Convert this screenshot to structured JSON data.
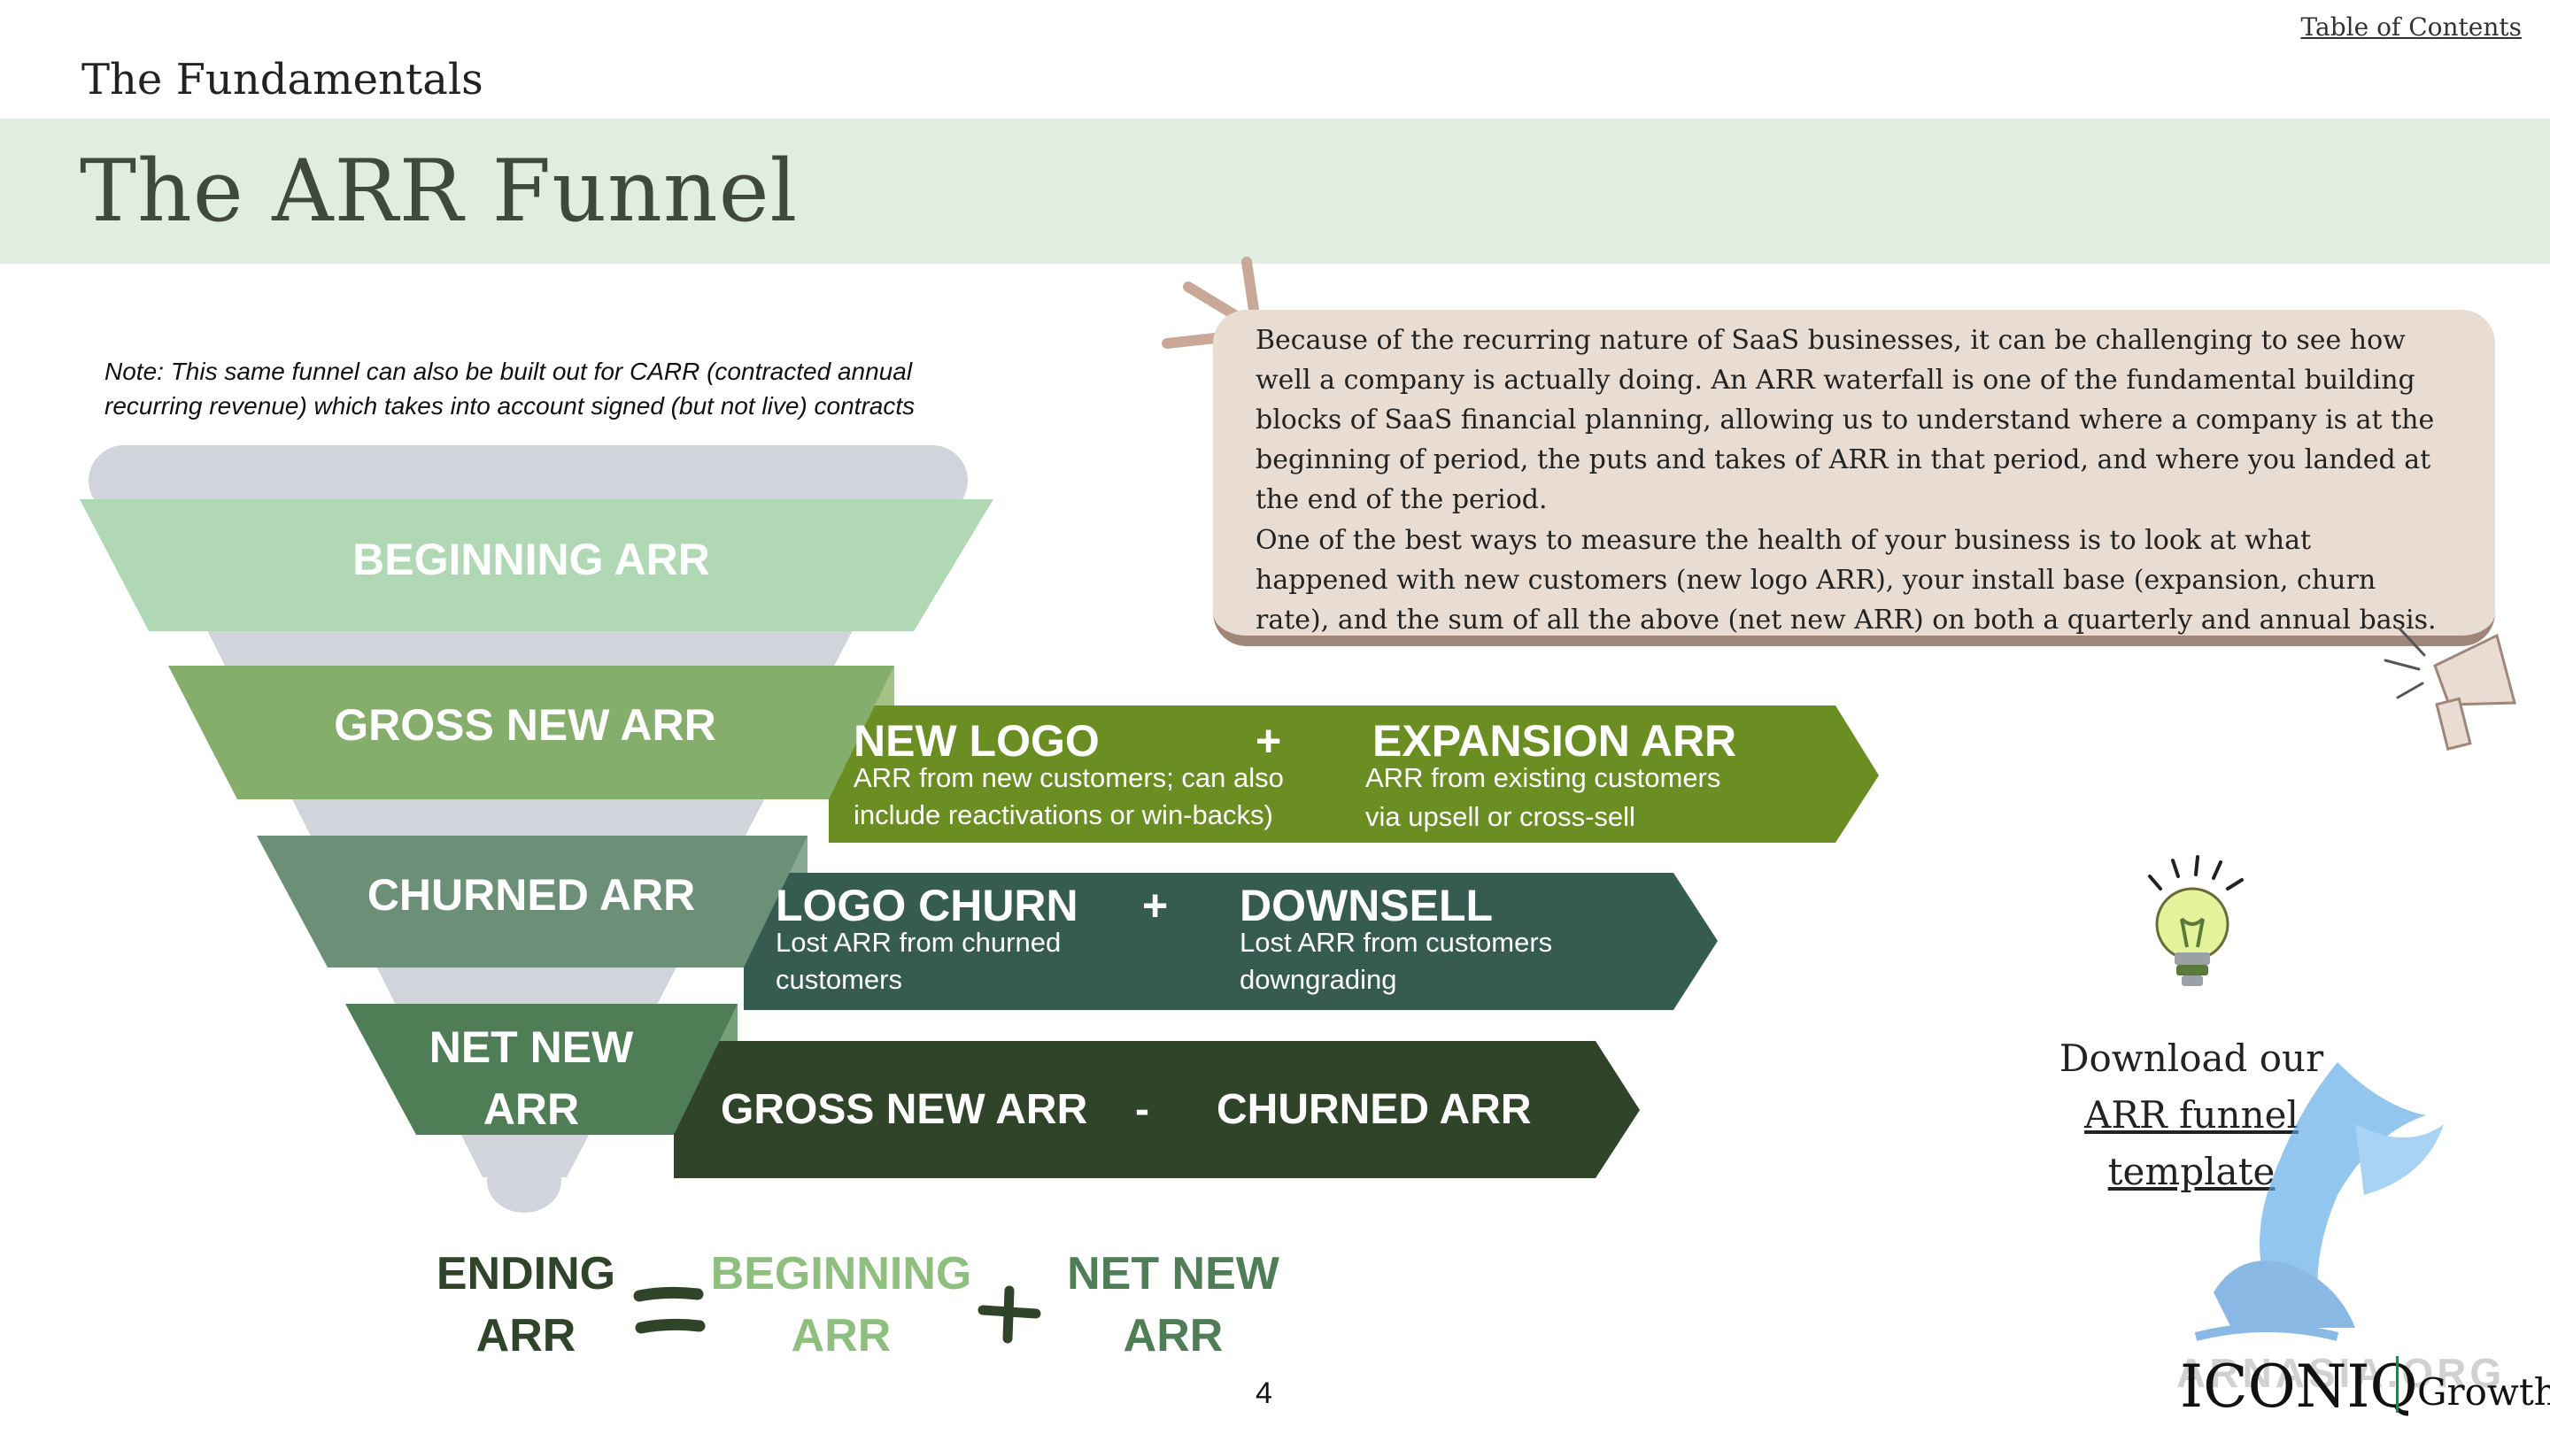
{
  "header": {
    "toc_link": "Table of Contents",
    "section": "The Fundamentals",
    "title": "The ARR Funnel"
  },
  "note": "Note: This same funnel can also be built out for CARR (contracted annual recurring revenue) which takes into account signed (but not live) contracts",
  "funnel": {
    "beginning": "BEGINNING ARR",
    "gross_new": "GROSS NEW ARR",
    "churned": "CHURNED ARR",
    "net_new_line1": "NET NEW",
    "net_new_line2": "ARR"
  },
  "arrows": {
    "gross_new": {
      "left_title": "NEW LOGO",
      "left_sub_1": "ARR from new customers; can also",
      "left_sub_2": "include reactivations or win-backs)",
      "operator": "+",
      "right_title": "EXPANSION ARR",
      "right_sub_1": "ARR from existing customers",
      "right_sub_2": "via upsell or cross-sell"
    },
    "churned": {
      "left_title": "LOGO CHURN",
      "left_sub_1": "Lost ARR from churned",
      "left_sub_2": "customers",
      "operator": "+",
      "right_title": "DOWNSELL",
      "right_sub_1": "Lost ARR from customers",
      "right_sub_2": "downgrading"
    },
    "net_new": {
      "left": "GROSS NEW ARR",
      "operator": "-",
      "right": "CHURNED ARR"
    }
  },
  "equation": {
    "ending_1": "ENDING",
    "ending_2": "ARR",
    "beginning_1": "BEGINNING",
    "beginning_2": "ARR",
    "net_new_1": "NET NEW",
    "net_new_2": "ARR"
  },
  "quote": {
    "p1": "Because of the recurring nature of SaaS businesses, it can be challenging to see how well a company is actually doing. An ARR waterfall is one of the fundamental building blocks of SaaS financial planning, allowing us to understand where a company is at the beginning of period, the puts and takes of ARR in that period, and where you landed at the end of the period.",
    "p2": "One of the best ways to measure the health of your business is to look at what happened with new customers (new logo ARR), your install base (expansion, churn rate), and the sum of all the above (net new ARR) on both a quarterly and annual basis."
  },
  "download": {
    "line1": "Download our",
    "link": "ARR funnel template"
  },
  "footer": {
    "page_number": "4",
    "logo": "ICONIQ",
    "logo_sub": "Growth",
    "watermark": "ARNASIA.ORG"
  },
  "icons": {
    "lightbulb": "lightbulb-icon",
    "megaphone": "megaphone-icon",
    "equals": "equals-icon",
    "plus": "plus-icon"
  },
  "colors": {
    "band": "#e0eee1",
    "beginning": "#b0d8b5",
    "gross_new": "#85ad6b",
    "churned": "#6c9077",
    "net_new": "#4e7d56",
    "arrow_gross": "#6b8e23",
    "arrow_churn": "#365c52",
    "arrow_net": "#2f4428",
    "card": "#e8dcd3"
  }
}
